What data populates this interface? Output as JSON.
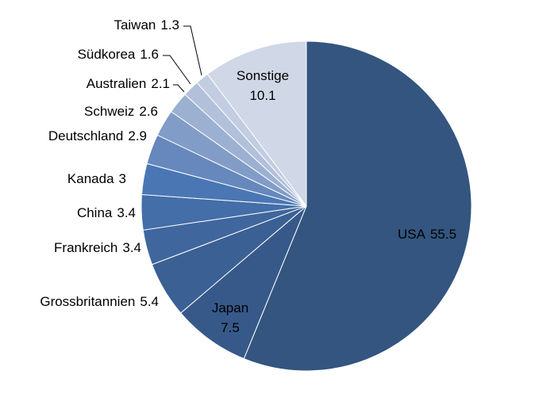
{
  "chart_data": {
    "type": "pie",
    "categories": [
      "USA",
      "Japan",
      "Grossbritannien",
      "Frankreich",
      "China",
      "Kanada",
      "Deutschland",
      "Schweiz",
      "Australien",
      "Südkorea",
      "Taiwan",
      "Sonstige"
    ],
    "values": [
      55.5,
      7.5,
      5.4,
      3.4,
      3.4,
      3,
      2.9,
      2.6,
      2.1,
      1.6,
      1.3,
      10.1
    ],
    "colors": [
      "#33557f",
      "#37598a",
      "#3b6094",
      "#3f679e",
      "#436ea8",
      "#4a77b4",
      "#6688bd",
      "#819dc7",
      "#9cb0d2",
      "#b2c0da",
      "#c2cde2",
      "#d0d8e7"
    ]
  }
}
